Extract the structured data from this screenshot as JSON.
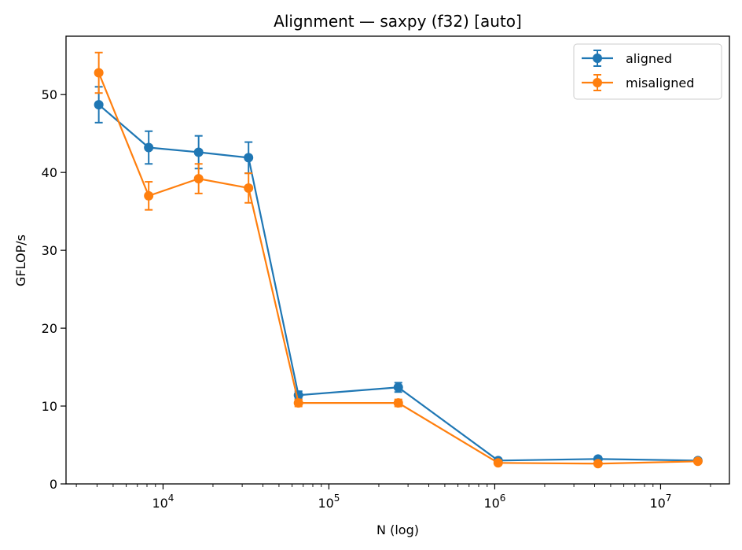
{
  "chart_data": {
    "type": "line",
    "title": "Alignment — saxpy (f32) [auto]",
    "xlabel": "N (log)",
    "ylabel": "GFLOP/s",
    "xscale": "log",
    "xlim": [
      2600,
      26000000
    ],
    "ylim": [
      0,
      57.5
    ],
    "xticks_major": [
      {
        "value": 10000,
        "base": "10",
        "exp": "4"
      },
      {
        "value": 100000,
        "base": "10",
        "exp": "5"
      },
      {
        "value": 1000000,
        "base": "10",
        "exp": "6"
      },
      {
        "value": 10000000,
        "base": "10",
        "exp": "7"
      }
    ],
    "yticks": [
      {
        "value": 0,
        "label": "0"
      },
      {
        "value": 10,
        "label": "10"
      },
      {
        "value": 20,
        "label": "20"
      },
      {
        "value": 30,
        "label": "30"
      },
      {
        "value": 40,
        "label": "40"
      },
      {
        "value": 50,
        "label": "50"
      }
    ],
    "legend_position": "top-right",
    "grid": false,
    "x": [
      4096,
      8192,
      16384,
      32768,
      65536,
      262144,
      1048576,
      4194304,
      16777216
    ],
    "series": [
      {
        "name": "aligned",
        "color": "#1f77b4",
        "values": [
          48.7,
          43.2,
          42.6,
          41.9,
          11.4,
          12.4,
          3.0,
          3.2,
          3.0
        ],
        "errors": [
          2.3,
          2.1,
          2.1,
          2.0,
          0.5,
          0.6,
          0.15,
          0.15,
          0.1
        ]
      },
      {
        "name": "misaligned",
        "color": "#ff7f0e",
        "values": [
          52.8,
          37.0,
          39.2,
          38.0,
          10.4,
          10.4,
          2.7,
          2.6,
          2.9
        ],
        "errors": [
          2.6,
          1.8,
          1.9,
          1.9,
          0.45,
          0.45,
          0.12,
          0.12,
          0.1
        ]
      }
    ]
  }
}
